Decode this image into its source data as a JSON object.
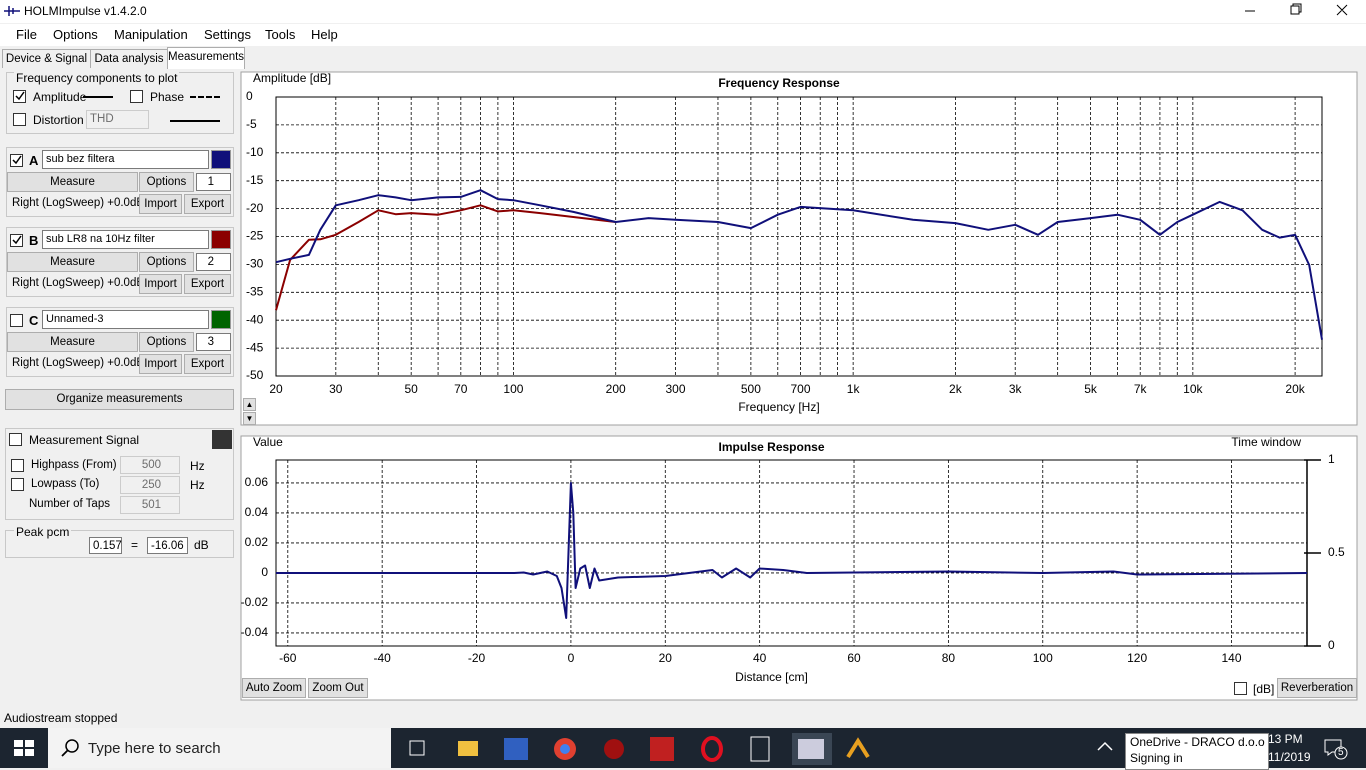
{
  "window": {
    "title": "HOLMImpulse  v1.4.2.0"
  },
  "menu": [
    "File",
    "Options",
    "Manipulation",
    "Settings",
    "Tools",
    "Help"
  ],
  "tabs": [
    "Device & Signal",
    "Data analysis",
    "Measurements"
  ],
  "components": {
    "title": "Frequency components to plot",
    "amplitude": "Amplitude",
    "phase": "Phase",
    "distortion": "Distortion",
    "thd": "THD"
  },
  "measurements": [
    {
      "letter": "A",
      "index": "1"
    },
    {
      "letter": "B",
      "index": "2"
    },
    {
      "letter": "C",
      "name": "Unnamed-3",
      "color": "#006400",
      "index": "3"
    }
  ],
  "buttons": {
    "measure": "Measure",
    "options": "Options",
    "import": "Import",
    "export": "Export",
    "sweep": "Right (LogSweep) +0.0dB",
    "organize": "Organize measurements"
  },
  "signal": {
    "title": "Measurement Signal",
    "highpass": "Highpass (From)",
    "highpass_value": "500",
    "lowpass": "Lowpass (To)",
    "lowpass_value": "250",
    "taps": "Number of Taps",
    "taps_value": "501",
    "unit": "Hz"
  },
  "peak": {
    "title": "Peak pcm",
    "pcm": "0.157",
    "eq": "=",
    "db": "-16.06",
    "unit": "dB"
  },
  "chart_data": [
    {
      "type": "line",
      "title": "Frequency Response",
      "y_label": "Amplitude [dB]",
      "x_label": "Frequency [Hz]",
      "log_x": true,
      "grid": true,
      "x": [
        20,
        22,
        25,
        27,
        30,
        35,
        40,
        45,
        50,
        60,
        70,
        80,
        90,
        100,
        120,
        150,
        200,
        250,
        300,
        400,
        500,
        600,
        700,
        1000,
        1500,
        2000,
        2500,
        3000,
        3500,
        4000,
        5000,
        6000,
        7000,
        8000,
        9000,
        10000,
        12000,
        14000,
        16000,
        18000,
        20000,
        22000,
        24000
      ],
      "xlim": [
        20,
        24000
      ],
      "ylim": [
        -50,
        0
      ],
      "yticks": [
        0,
        -5,
        -10,
        -15,
        -20,
        -25,
        -30,
        -35,
        -40,
        -45,
        -50
      ],
      "xticks": [
        20,
        30,
        50,
        70,
        100,
        200,
        300,
        500,
        700,
        {
          "value": 1000,
          "label": "1k"
        },
        {
          "value": 2000,
          "label": "2k"
        },
        {
          "value": 3000,
          "label": "3k"
        },
        {
          "value": 5000,
          "label": "5k"
        },
        {
          "value": 7000,
          "label": "7k"
        },
        {
          "value": 10000,
          "label": "10k"
        },
        {
          "value": 20000,
          "label": "20k"
        }
      ],
      "minor_xticks": [
        40,
        60,
        80,
        90,
        400,
        600,
        800,
        900,
        4000,
        6000,
        8000,
        9000
      ],
      "series": [
        {
          "name": "sub LR8 na 10Hz filter",
          "color": "#8b0000",
          "values": [
            -38.2,
            -29.2,
            -25.6,
            -25.5,
            -24.7,
            -22.4,
            -20.3,
            -21.0,
            -20.8,
            -21.1,
            -20.3,
            -19.4,
            -20.5,
            -20.3,
            -20.8,
            -21.5,
            -22.4,
            null,
            null,
            null,
            null,
            null,
            null,
            null,
            null,
            null,
            null,
            null,
            null,
            null,
            null,
            null,
            null,
            null,
            null,
            null,
            null,
            null,
            null,
            null,
            null,
            null,
            null
          ]
        },
        {
          "name": "sub bez filtera",
          "color": "#10107a",
          "values": [
            -29.6,
            -29.0,
            -28.3,
            -23.8,
            -19.4,
            -18.5,
            -17.6,
            -18.0,
            -18.5,
            -18.0,
            -17.9,
            -16.7,
            -18.3,
            -18.5,
            -19.4,
            -20.6,
            -22.4,
            -21.7,
            -22.0,
            -22.4,
            -23.5,
            -21.1,
            -19.7,
            -20.3,
            -22.0,
            -22.6,
            -23.8,
            -22.9,
            -24.7,
            -22.4,
            -21.7,
            -21.1,
            -22.0,
            -24.7,
            -22.4,
            -21.1,
            -18.8,
            -20.3,
            -23.8,
            -25.2,
            -24.7,
            -30.1,
            -43.5
          ]
        }
      ]
    },
    {
      "type": "line",
      "title": "Impulse Response",
      "y_label": "Value",
      "y2_label": "Time window",
      "x_label": "Distance [cm]",
      "grid": true,
      "x": [
        -62.5,
        -12,
        -10,
        -8,
        -5,
        -3,
        -2,
        -1,
        0,
        0.5,
        1,
        2,
        3,
        4,
        5,
        6,
        10,
        20,
        30,
        32,
        35,
        38,
        40,
        45,
        50,
        80,
        100,
        115,
        120,
        156
      ],
      "xlim": [
        -62.5,
        156
      ],
      "ylim": [
        -0.0487,
        0.0753
      ],
      "yticks": [
        0.06,
        0.04,
        0.02,
        0,
        -0.02,
        -0.04
      ],
      "xticks": [
        -60,
        -40,
        -20,
        0,
        20,
        40,
        60,
        80,
        100,
        120,
        140
      ],
      "y2lim": [
        0,
        1
      ],
      "y2ticks": [
        1,
        0.5,
        0
      ],
      "series": [
        {
          "color": "#10107a",
          "values": [
            0,
            0,
            0.0003,
            -0.001,
            0.001,
            -0.002,
            -0.01,
            -0.03,
            0.06,
            0.04,
            -0.01,
            0.003,
            0.005,
            -0.01,
            0.003,
            -0.005,
            -0.003,
            -0.002,
            0.002,
            -0.003,
            0.003,
            -0.003,
            0.003,
            0.002,
            0,
            0.001,
            0,
            0.001,
            -0.001,
            0
          ]
        }
      ]
    }
  ],
  "bottom": {
    "auto_zoom": "Auto Zoom",
    "zoom_out": "Zoom Out",
    "db": "[dB]",
    "reverberation": "Reverberation"
  },
  "status": "Audiostream stopped",
  "taskbar": {
    "search": "Type here to search",
    "toast_title": "OneDrive - DRACO d.o.o",
    "toast_sub": "Signing in",
    "time": "13 PM",
    "date": "11/2019",
    "badge": "5"
  }
}
